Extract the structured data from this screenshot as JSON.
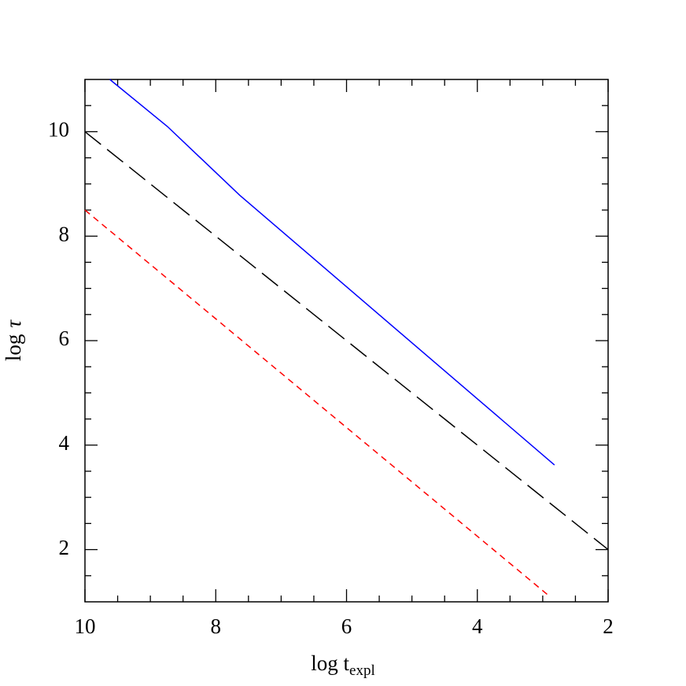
{
  "chart_data": {
    "type": "line",
    "xlabel": {
      "text": "log t",
      "subscript": "expl"
    },
    "ylabel": {
      "text": "log",
      "symbol": "τ"
    },
    "xlim": [
      10,
      2
    ],
    "ylim": [
      1,
      11
    ],
    "xticks": [
      10,
      8,
      6,
      4,
      2
    ],
    "yticks": [
      2,
      4,
      6,
      8,
      10
    ],
    "xticks_minor": [
      9.5,
      9,
      8.5,
      7.5,
      7,
      6.5,
      5.5,
      5,
      4.5,
      3.5,
      3,
      2.5
    ],
    "yticks_minor": [
      1.5,
      2.5,
      3,
      3.5,
      4.5,
      5,
      5.5,
      6.5,
      7,
      7.5,
      8.5,
      9,
      9.5,
      10.5
    ],
    "series": [
      {
        "color": "#0000ff",
        "dash": "solid",
        "x": [
          9.62,
          8.74,
          7.63,
          2.82
        ],
        "values": [
          11,
          10.1,
          8.78,
          3.62
        ]
      },
      {
        "color": "#000000",
        "dash": "long",
        "x": [
          10,
          2
        ],
        "values": [
          10,
          2
        ]
      },
      {
        "color": "#ff0000",
        "dash": "short",
        "x": [
          10,
          2.9
        ],
        "values": [
          8.5,
          1.11
        ]
      }
    ]
  }
}
